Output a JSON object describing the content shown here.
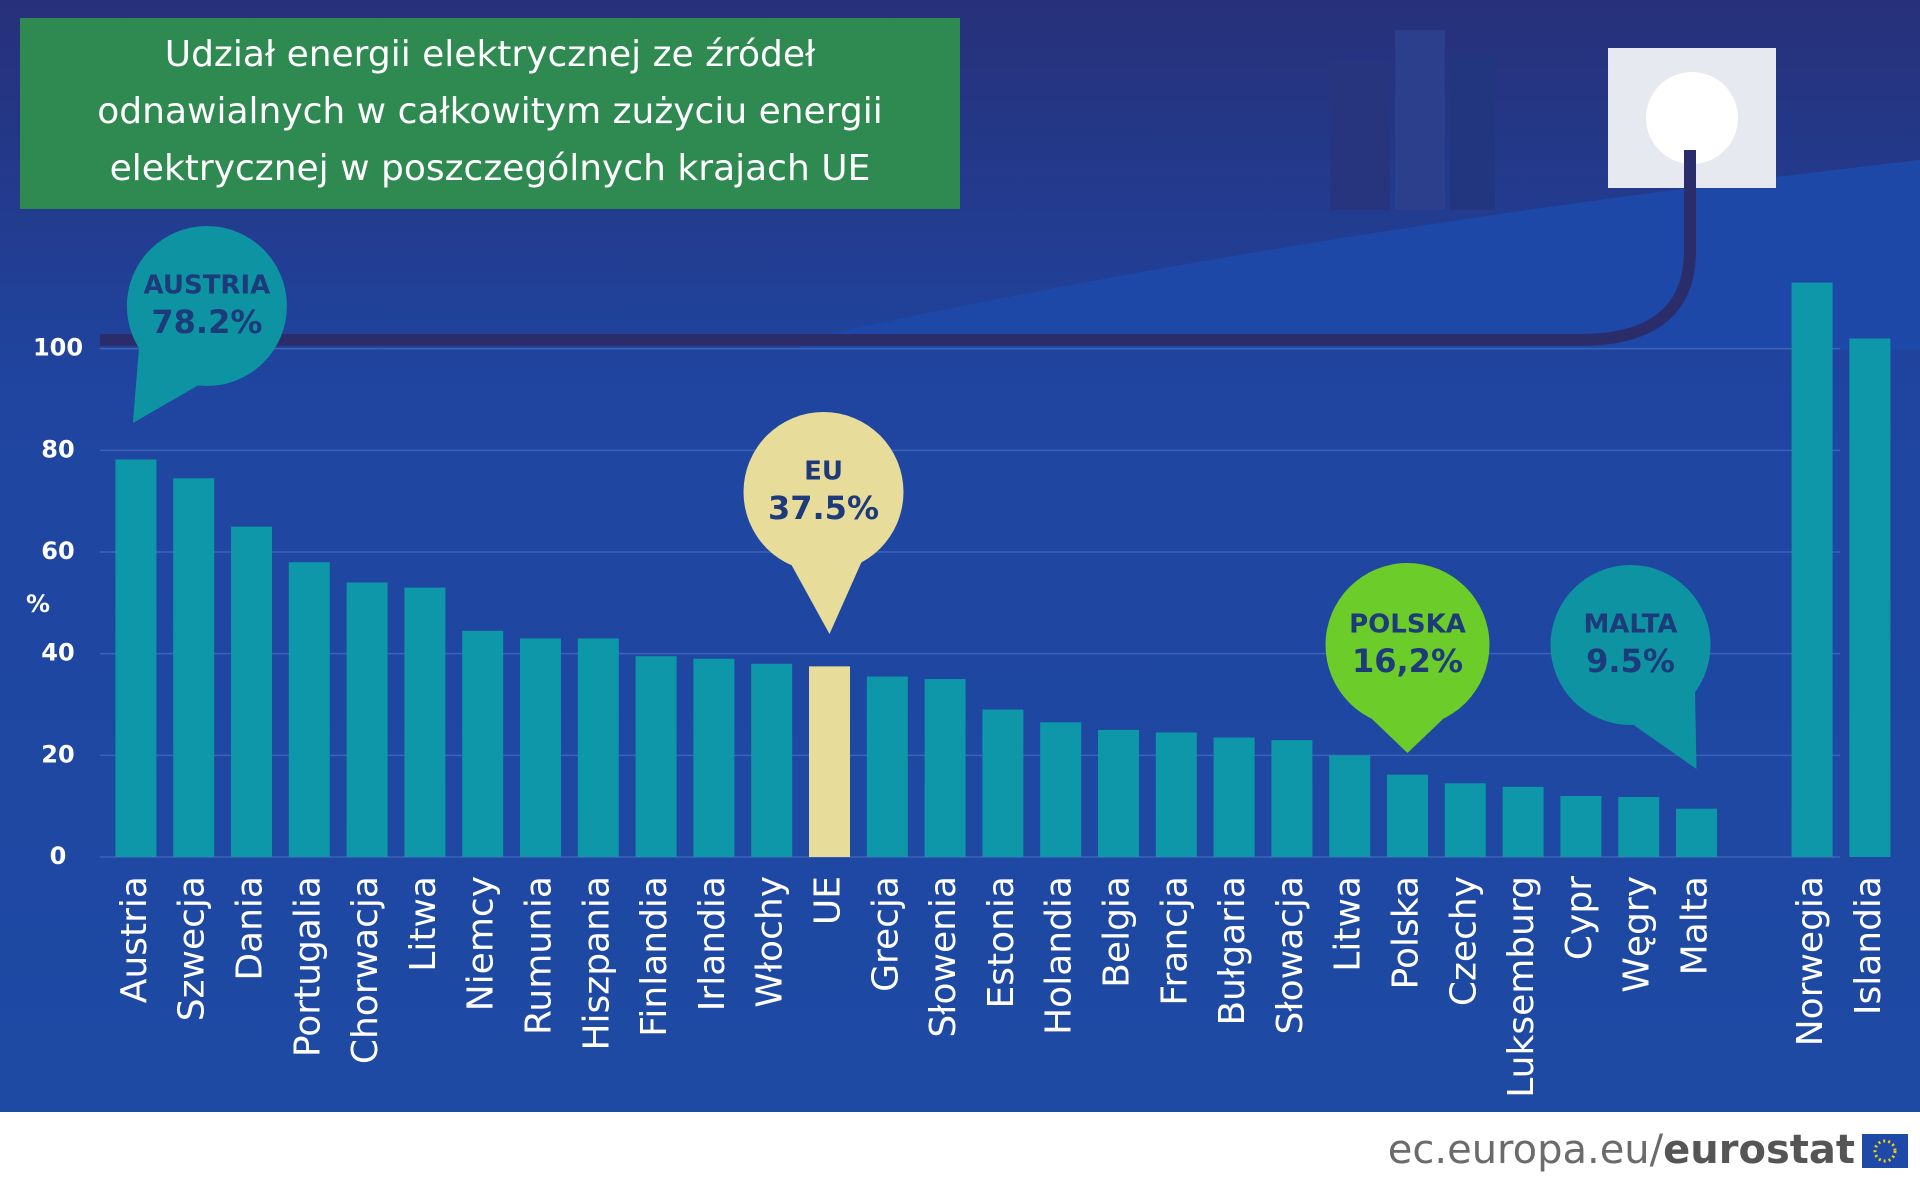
{
  "chart_data": {
    "type": "bar",
    "title": [
      "Udział energii elektrycznej ze źródeł",
      "odnawialnych w całkowitym zużyciu energii",
      "elektrycznej w poszczególnych krajach UE"
    ],
    "ylabel": "%",
    "categories": [
      "Austria",
      "Szwecja",
      "Dania",
      "Portugalia",
      "Chorwacja",
      "Litwa",
      "Niemcy",
      "Rumunia",
      "Hiszpania",
      "Finlandia",
      "Irlandia",
      "Włochy",
      "UE",
      "Grecja",
      "Słowenia",
      "Estonia",
      "Holandia",
      "Belgia",
      "Francja",
      "Bułgaria",
      "Słowacja",
      "Litwa",
      "Polska",
      "Czechy",
      "Luksemburg",
      "Cypr",
      "Węgry",
      "Malta",
      null,
      "Norwegia",
      "Islandia"
    ],
    "values": [
      78.2,
      74.5,
      65,
      58,
      54,
      53,
      44.5,
      43,
      43,
      39.5,
      39,
      38,
      37.5,
      35.5,
      35,
      29,
      26.5,
      25,
      24.5,
      23.5,
      23,
      20,
      16.2,
      14.5,
      13.8,
      12,
      11.8,
      9.5,
      null,
      113,
      102
    ],
    "color": "#0e97a8",
    "highlight": {
      "category": "UE",
      "color": "#e8dc9a"
    },
    "ylim": [
      0,
      120
    ],
    "yticks": [
      0,
      20,
      40,
      60,
      80,
      100
    ],
    "grid": true,
    "annotations": [
      {
        "category": "Austria",
        "label": "AUSTRIA",
        "text": "78.2%",
        "color": "#0e93a3",
        "text_color": "#1d3a7a"
      },
      {
        "category": "UE",
        "label": "EU",
        "text": "37.5%",
        "color": "#e8dc9a",
        "text_color": "#1d3a7a"
      },
      {
        "category": "Polska",
        "label": "POLSKA",
        "text": "16,2%",
        "color": "#6ccc2a",
        "text_color": "#1d3a7a"
      },
      {
        "category": "Malta",
        "label": "MALTA",
        "text": "9.5%",
        "color": "#0e93a3",
        "text_color": "#1d3a7a"
      }
    ]
  },
  "footer": {
    "site": "ec.europa.eu/",
    "brand": "eurostat"
  }
}
